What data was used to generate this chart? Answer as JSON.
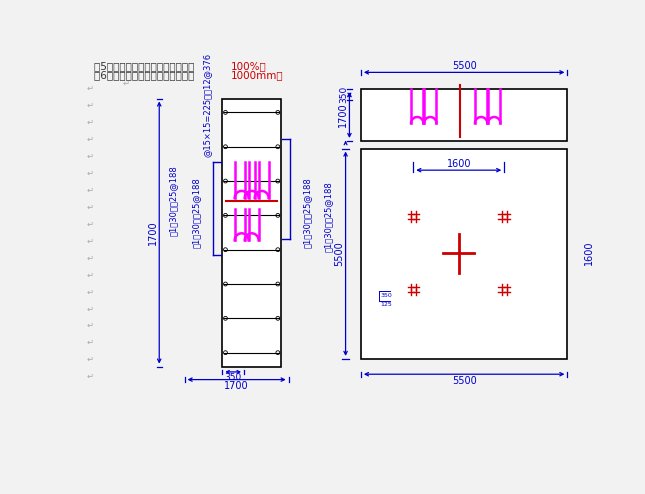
{
  "bg_color": "#f2f2f2",
  "blue": "#0000cc",
  "black": "#000000",
  "magenta": "#ff00ff",
  "red": "#cc0000",
  "fs_header": 7.5,
  "fs_dim": 7.0,
  "fs_annot": 6.0,
  "header1_black": "（5）培机安装时混凝土强度应达到 ",
  "header1_red": "100%。",
  "header2_black": "（6）混凝土基础的埋置深度应大于 ",
  "header2_red": "1000mm。",
  "annot_left1": "！1）30－箁25@188",
  "annot_left2": "！1）30－箁25@188",
  "annot_right1": "！1）30－箁25@188",
  "annot_right2": "！1）30－箁25@188",
  "annot_top": "@15×15=225－箁12@376"
}
